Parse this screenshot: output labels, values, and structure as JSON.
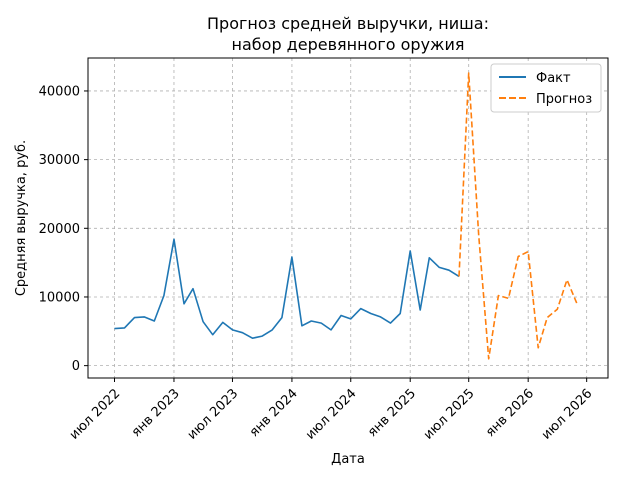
{
  "chart_data": {
    "type": "line",
    "title_line1": "Прогноз средней выручки, ниша:",
    "title_line2": "набор деревянного оружия",
    "xlabel": "Дата",
    "ylabel": "Средняя выручка, руб.",
    "x_ticks": [
      "июл 2022",
      "янв 2023",
      "июл 2023",
      "янв 2024",
      "июл 2024",
      "янв 2025",
      "июл 2025",
      "янв 2026",
      "июл 2026"
    ],
    "y_ticks": [
      "0",
      "10000",
      "20000",
      "30000",
      "40000"
    ],
    "grid": true,
    "legend_position": "top-right",
    "legend": [
      "Факт",
      "Прогноз"
    ],
    "series": [
      {
        "name": "Факт",
        "style": "solid",
        "color": "#1f77b4",
        "x": [
          "2022-07",
          "2022-08",
          "2022-09",
          "2022-10",
          "2022-11",
          "2022-12",
          "2023-01",
          "2023-02",
          "2023-03",
          "2023-04",
          "2023-05",
          "2023-06",
          "2023-07",
          "2023-08",
          "2023-09",
          "2023-10",
          "2023-11",
          "2023-12",
          "2024-01",
          "2024-02",
          "2024-03",
          "2024-04",
          "2024-05",
          "2024-06",
          "2024-07",
          "2024-08",
          "2024-09",
          "2024-10",
          "2024-11",
          "2024-12",
          "2025-01",
          "2025-02",
          "2025-03",
          "2025-04",
          "2025-05",
          "2025-06"
        ],
        "values": [
          5400,
          5500,
          7000,
          7100,
          6500,
          10200,
          18400,
          9000,
          11200,
          6400,
          4500,
          6300,
          5200,
          4800,
          4000,
          4300,
          5200,
          7000,
          15800,
          5800,
          6500,
          6200,
          5200,
          7300,
          6800,
          8300,
          7600,
          7100,
          6200,
          7600,
          16700,
          8100,
          15700,
          14300,
          13900,
          13000
        ]
      },
      {
        "name": "Прогноз",
        "style": "dashed",
        "color": "#ff7f0e",
        "x": [
          "2025-06",
          "2025-07",
          "2025-08",
          "2025-09",
          "2025-10",
          "2025-11",
          "2025-12",
          "2026-01",
          "2026-02",
          "2026-03",
          "2026-04",
          "2026-05",
          "2026-06"
        ],
        "values": [
          13000,
          42600,
          19000,
          1000,
          10200,
          9800,
          15900,
          16600,
          2600,
          7000,
          8200,
          12500,
          9000
        ]
      }
    ]
  }
}
